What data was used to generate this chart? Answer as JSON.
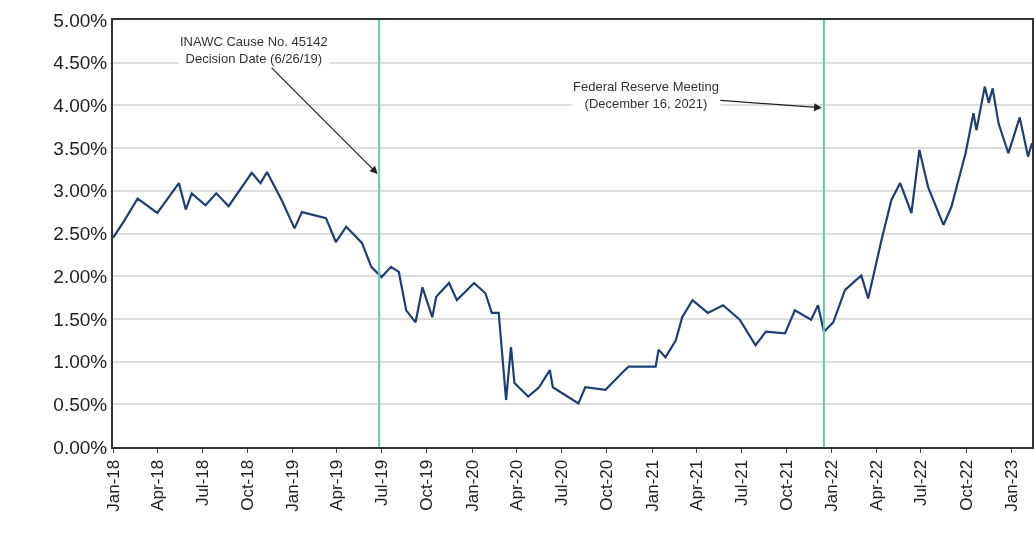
{
  "chart_data": {
    "type": "line",
    "x": [
      "2018-01-01",
      "2018-01-25",
      "2018-02-20",
      "2018-04-01",
      "2018-05-15",
      "2018-05-29",
      "2018-06-10",
      "2018-07-08",
      "2018-07-30",
      "2018-08-24",
      "2018-10-10",
      "2018-10-28",
      "2018-11-10",
      "2018-12-10",
      "2019-01-05",
      "2019-01-20",
      "2019-03-10",
      "2019-03-30",
      "2019-04-20",
      "2019-05-22",
      "2019-06-10",
      "2019-07-01",
      "2019-07-20",
      "2019-08-05",
      "2019-08-20",
      "2019-09-08",
      "2019-09-22",
      "2019-10-12",
      "2019-10-20",
      "2019-11-15",
      "2019-12-01",
      "2020-01-05",
      "2020-01-28",
      "2020-02-10",
      "2020-02-24",
      "2020-03-10",
      "2020-03-20",
      "2020-03-27",
      "2020-04-24",
      "2020-05-16",
      "2020-06-07",
      "2020-06-13",
      "2020-08-04",
      "2020-08-18",
      "2020-09-28",
      "2020-11-01",
      "2020-11-14",
      "2020-12-25",
      "2021-01-08",
      "2021-01-14",
      "2021-01-28",
      "2021-02-18",
      "2021-03-03",
      "2021-03-24",
      "2021-04-24",
      "2021-05-25",
      "2021-06-28",
      "2021-07-30",
      "2021-08-20",
      "2021-09-28",
      "2021-10-18",
      "2021-11-20",
      "2021-12-04",
      "2021-12-16",
      "2022-01-04",
      "2022-01-28",
      "2022-03-02",
      "2022-03-16",
      "2022-04-12",
      "2022-05-02",
      "2022-05-20",
      "2022-06-12",
      "2022-06-28",
      "2022-07-16",
      "2022-08-16",
      "2022-09-01",
      "2022-09-30",
      "2022-10-16",
      "2022-10-22",
      "2022-11-08",
      "2022-11-16",
      "2022-11-24",
      "2022-12-06",
      "2022-12-26",
      "2023-01-18",
      "2023-02-04",
      "2023-02-12"
    ],
    "series": [
      {
        "color": "#1f3f74",
        "values": [
          2.45,
          2.66,
          2.91,
          2.74,
          3.09,
          2.78,
          2.97,
          2.83,
          2.97,
          2.82,
          3.21,
          3.09,
          3.22,
          2.89,
          2.56,
          2.75,
          2.68,
          2.4,
          2.58,
          2.39,
          2.11,
          1.99,
          2.11,
          2.05,
          1.6,
          1.46,
          1.87,
          1.52,
          1.76,
          1.92,
          1.72,
          1.92,
          1.8,
          1.57,
          1.57,
          0.55,
          1.17,
          0.75,
          0.59,
          0.7,
          0.9,
          0.7,
          0.51,
          0.7,
          0.67,
          0.87,
          0.94,
          0.94,
          0.94,
          1.14,
          1.05,
          1.25,
          1.52,
          1.72,
          1.57,
          1.66,
          1.49,
          1.19,
          1.35,
          1.33,
          1.6,
          1.49,
          1.66,
          1.35,
          1.46,
          1.84,
          2.01,
          1.74,
          2.42,
          2.89,
          3.09,
          2.74,
          3.48,
          3.04,
          2.6,
          2.81,
          3.44,
          3.91,
          3.71,
          4.22,
          4.03,
          4.2,
          3.79,
          3.44,
          3.86,
          3.4,
          3.56
        ]
      }
    ],
    "xlim": [
      "2018-01-01",
      "2023-02-12"
    ],
    "xticks": [
      {
        "value": "2018-01-01",
        "label": "Jan-18"
      },
      {
        "value": "2018-04-01",
        "label": "Apr-18"
      },
      {
        "value": "2018-07-01",
        "label": "Jul-18"
      },
      {
        "value": "2018-10-01",
        "label": "Oct-18"
      },
      {
        "value": "2019-01-01",
        "label": "Jan-19"
      },
      {
        "value": "2019-04-01",
        "label": "Apr-19"
      },
      {
        "value": "2019-07-01",
        "label": "Jul-19"
      },
      {
        "value": "2019-10-01",
        "label": "Oct-19"
      },
      {
        "value": "2020-01-01",
        "label": "Jan-20"
      },
      {
        "value": "2020-04-01",
        "label": "Apr-20"
      },
      {
        "value": "2020-07-01",
        "label": "Jul-20"
      },
      {
        "value": "2020-10-01",
        "label": "Oct-20"
      },
      {
        "value": "2021-01-01",
        "label": "Jan-21"
      },
      {
        "value": "2021-04-01",
        "label": "Apr-21"
      },
      {
        "value": "2021-07-01",
        "label": "Jul-21"
      },
      {
        "value": "2021-10-01",
        "label": "Oct-21"
      },
      {
        "value": "2022-01-01",
        "label": "Jan-22"
      },
      {
        "value": "2022-04-01",
        "label": "Apr-22"
      },
      {
        "value": "2022-07-01",
        "label": "Jul-22"
      },
      {
        "value": "2022-10-01",
        "label": "Oct-22"
      },
      {
        "value": "2023-01-01",
        "label": "Jan-23"
      }
    ],
    "ylim": [
      0,
      5
    ],
    "yticks": [
      {
        "value": 0,
        "label": "0.00%"
      },
      {
        "value": 0.5,
        "label": "0.50%"
      },
      {
        "value": 1,
        "label": "1.00%"
      },
      {
        "value": 1.5,
        "label": "1.50%"
      },
      {
        "value": 2,
        "label": "2.00%"
      },
      {
        "value": 2.5,
        "label": "2.50%"
      },
      {
        "value": 3,
        "label": "3.00%"
      },
      {
        "value": 3.5,
        "label": "3.50%"
      },
      {
        "value": 4,
        "label": "4.00%"
      },
      {
        "value": 4.5,
        "label": "4.50%"
      },
      {
        "value": 5,
        "label": "5.00%"
      }
    ],
    "ref_lines": [
      {
        "axis": "x",
        "value": "2019-06-26",
        "color": "#5ccfa8"
      },
      {
        "axis": "x",
        "value": "2021-12-16",
        "color": "#5ccfa8"
      }
    ],
    "annotations": [
      {
        "text": "INAWC Cause No. 45142\nDecision Date (6/26/19)",
        "x": "2019-06-26",
        "y": 3.18
      },
      {
        "text": "Federal Reserve Meeting\n(December 16, 2021)",
        "x": "2021-12-16",
        "y": 3.97
      }
    ],
    "grid": "y",
    "marker": "none",
    "line_style": "solid"
  }
}
